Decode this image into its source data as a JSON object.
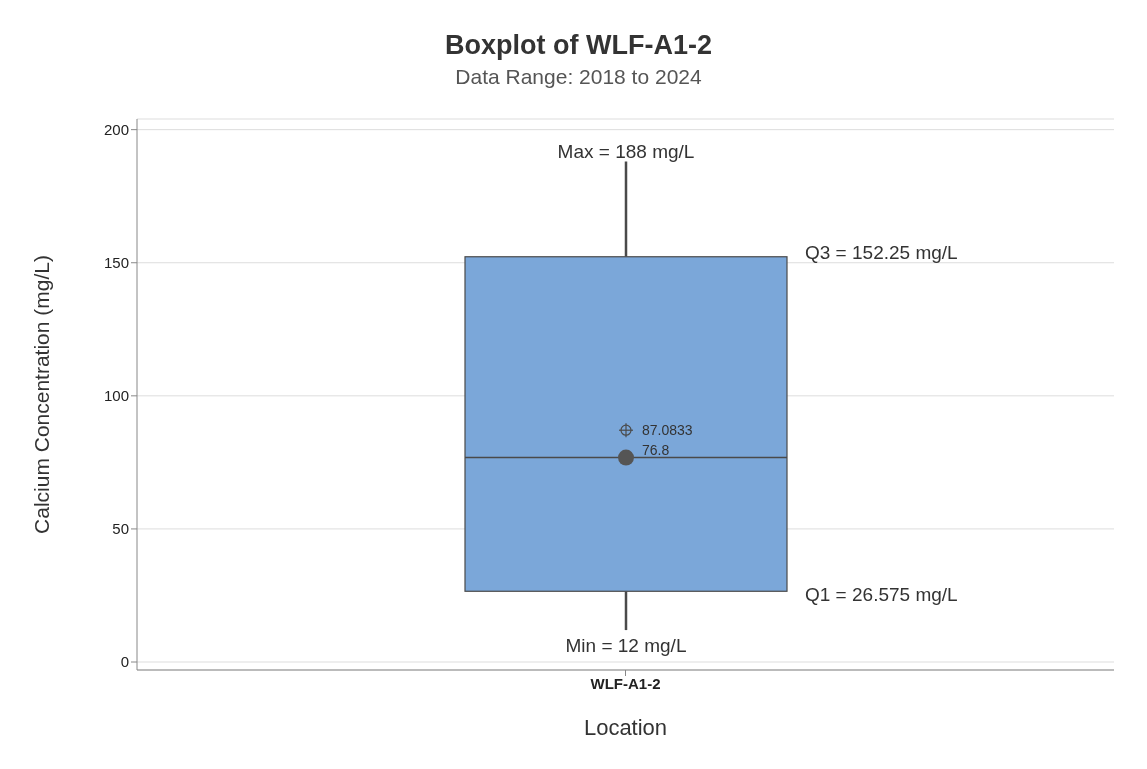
{
  "chart_data": {
    "type": "box",
    "title": "Boxplot of WLF-A1-2",
    "subtitle": "Data Range: 2018 to 2024",
    "xlabel": "Location",
    "ylabel": "Calcium Concentration (mg/L)",
    "categories": [
      "WLF-A1-2"
    ],
    "boxes": [
      {
        "low": 12,
        "q1": 26.575,
        "median": 76.8,
        "q3": 152.25,
        "high": 188,
        "mean": 87.0833
      }
    ],
    "color": "#7ba7d9",
    "ylim": [
      -3,
      204
    ],
    "yticks": [
      0,
      50,
      100,
      150,
      200
    ],
    "grid": "y",
    "annotations": [
      {
        "text": "Max = 188 mg/L",
        "x": "WLF-A1-2",
        "y": 188
      },
      "Q3 = 152.25 mg/L",
      "87.0833",
      {
        "text": "76.8",
        "x": "WLF-A1-2",
        "y": 76.8
      },
      "Q1 = 26.575 mg/L",
      {
        "text": "Min = 12 mg/L",
        "x": "WLF-A1-2",
        "y": 12
      }
    ]
  }
}
